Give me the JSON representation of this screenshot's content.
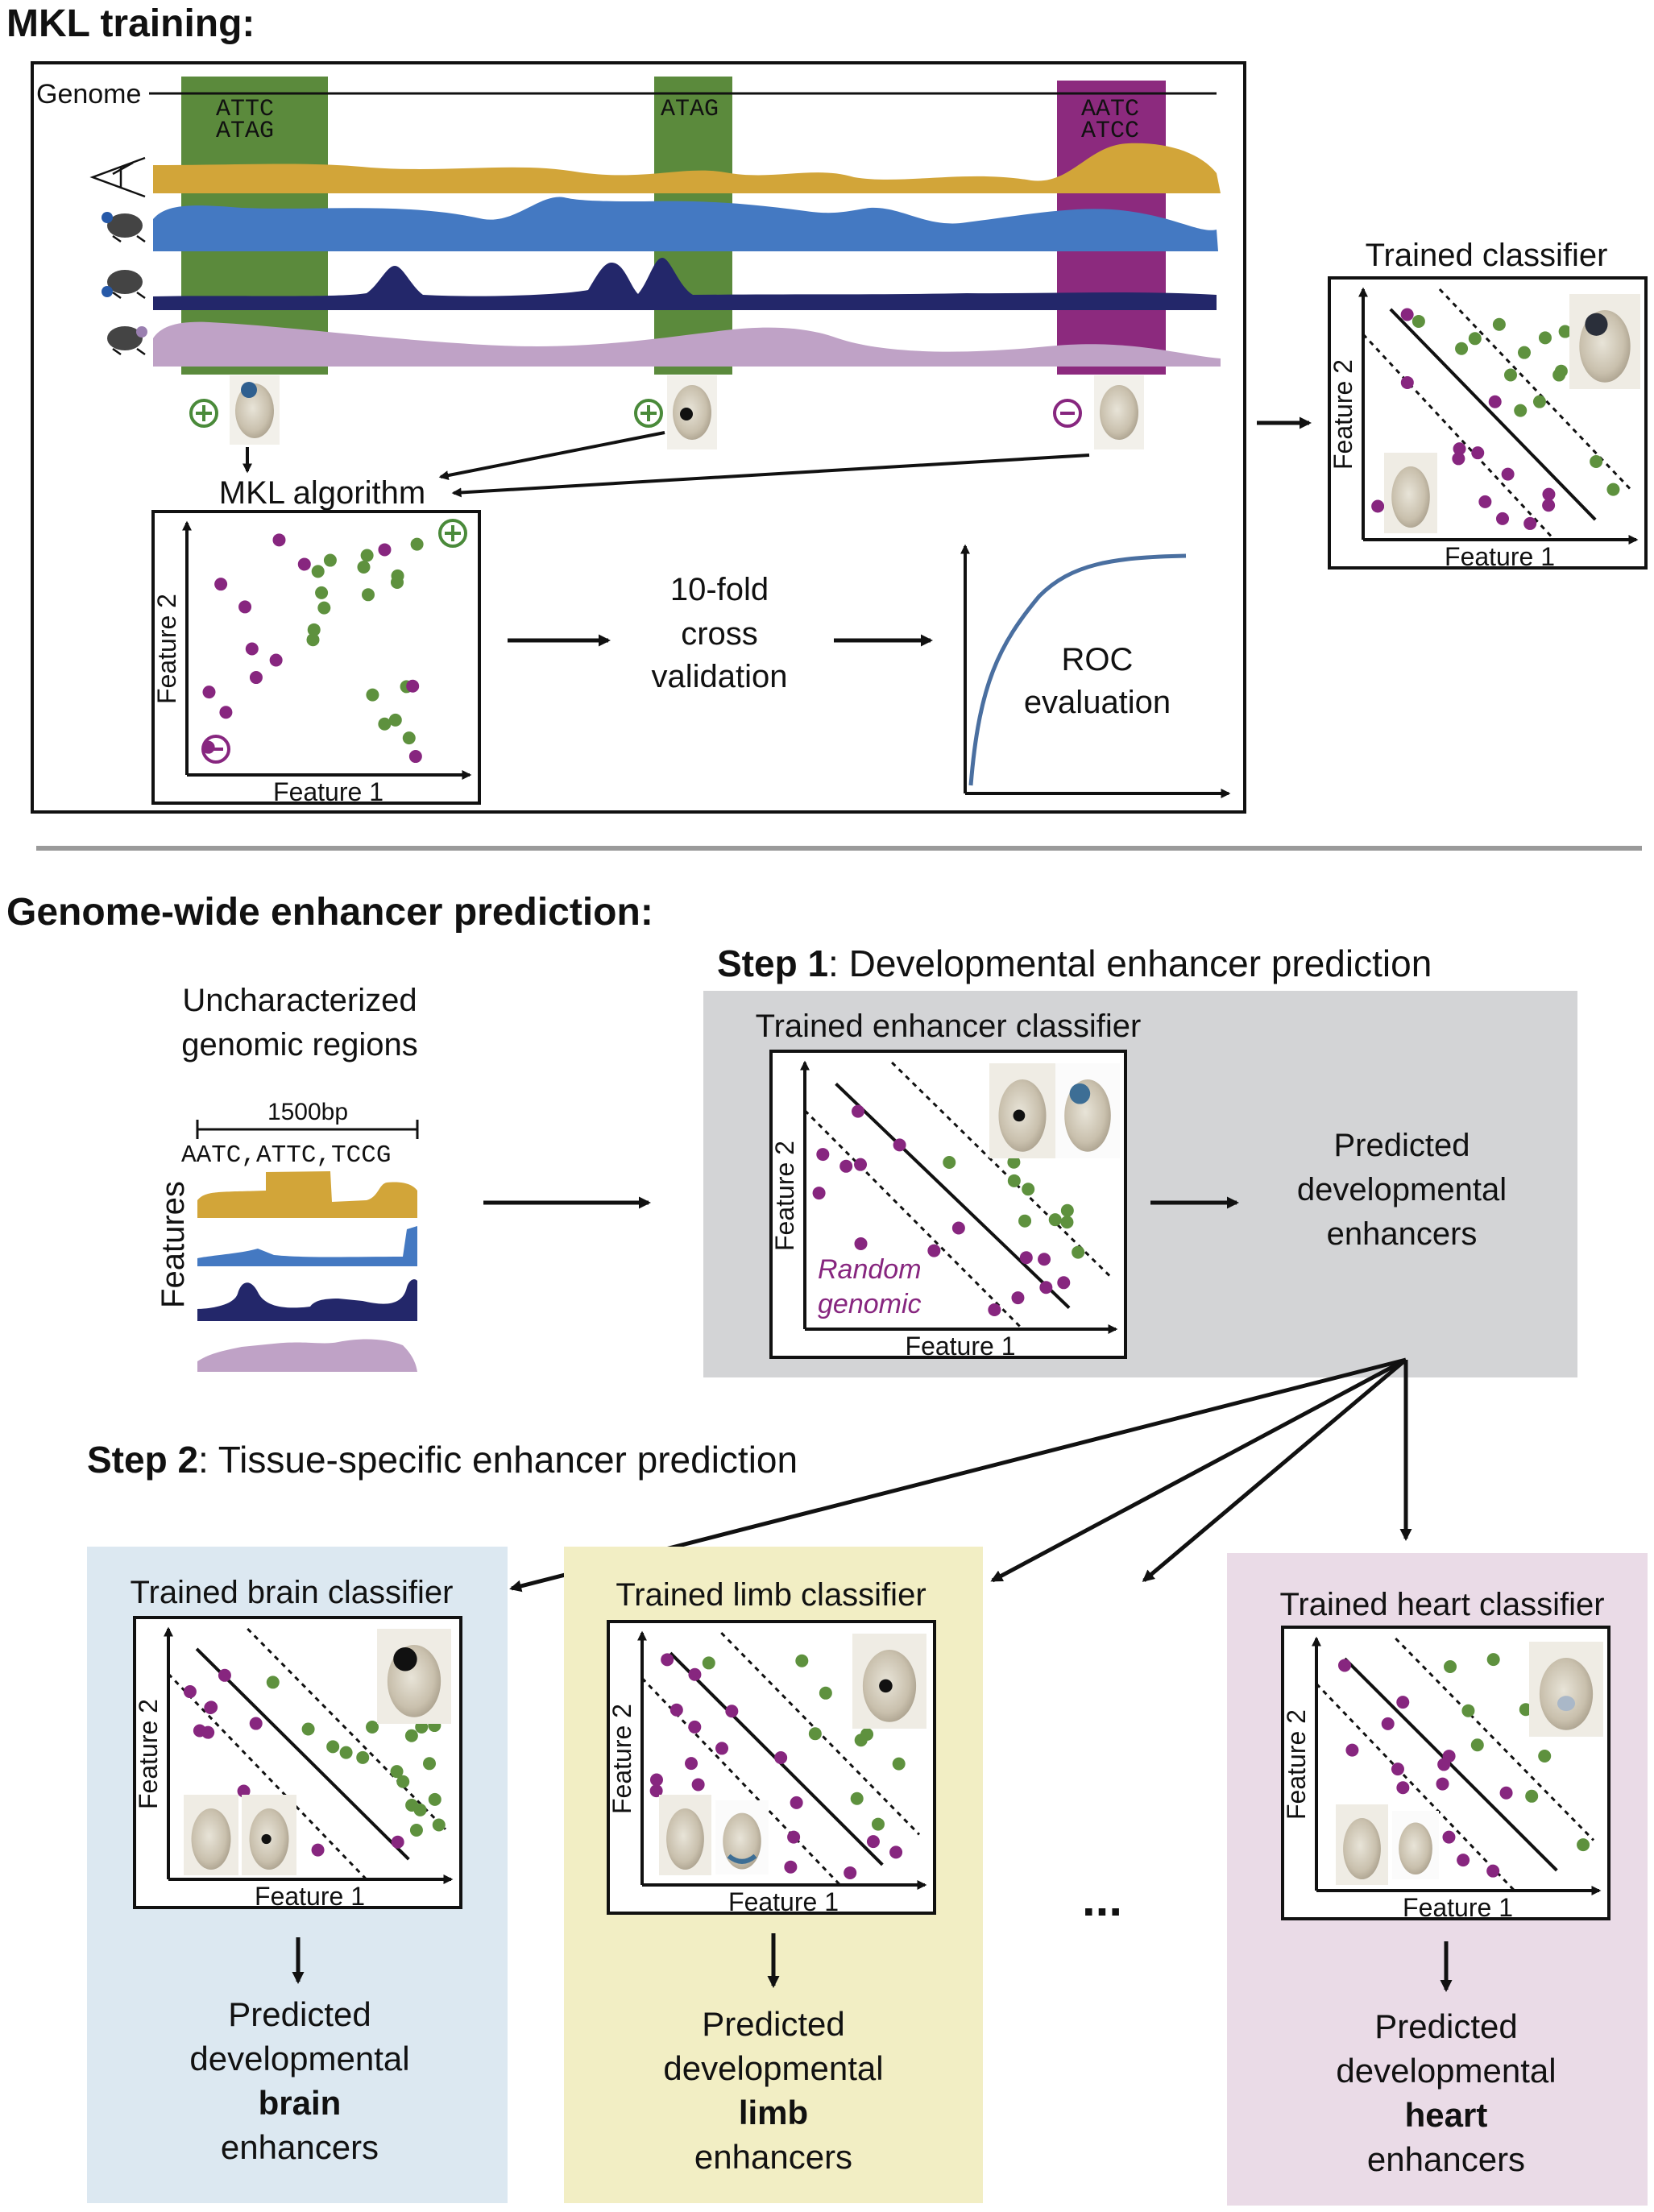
{
  "section1": {
    "title": "MKL training:",
    "genome_label": "Genome",
    "kmers": [
      "ATTC",
      "ATAG",
      "ATAG",
      "AATC",
      "ATCC"
    ],
    "signs": [
      "+",
      "+",
      "−"
    ],
    "mkl_label": "MKL algorithm",
    "cv_label": [
      "10-fold",
      "cross",
      "validation"
    ],
    "roc_label": [
      "ROC",
      "evaluation"
    ],
    "trained_label": "Trained classifier"
  },
  "axes": {
    "x": "Feature 1",
    "y": "Feature 2"
  },
  "section2": {
    "title": "Genome-wide enhancer prediction:",
    "uncharacterized": [
      "Uncharacterized",
      "genomic regions"
    ],
    "bp_label": "1500bp",
    "kmer_list": "AATC,ATTC,TCCG",
    "features_label": "Features",
    "step1_bold": "Step 1",
    "step1_rest": ": Developmental enhancer prediction",
    "step1_classifier": "Trained enhancer classifier",
    "random_genomic": [
      "Random",
      "genomic"
    ],
    "step1_output": [
      "Predicted",
      "developmental",
      "enhancers"
    ],
    "step2_bold": "Step 2",
    "step2_rest": ": Tissue-specific enhancer prediction",
    "ellipsis": "...",
    "panels": [
      {
        "title": "Trained brain classifier",
        "pre": [
          "Predicted",
          "developmental"
        ],
        "tissue": "brain",
        "post": "enhancers",
        "bg": "#dce8f1"
      },
      {
        "title": "Trained limb classifier",
        "pre": [
          "Predicted",
          "developmental"
        ],
        "tissue": "limb",
        "post": "enhancers",
        "bg": "#f2eec4"
      },
      {
        "title": "Trained heart classifier",
        "pre": [
          "Predicted",
          "developmental"
        ],
        "tissue": "heart",
        "post": "enhancers",
        "bg": "#eadbe7"
      }
    ]
  },
  "colors": {
    "green_band": "#5b8a3c",
    "purple_band": "#8c2a7e",
    "gold": "#d2a539",
    "blue": "#4479c2",
    "navy": "#23276a",
    "lilac": "#bfa2c6",
    "green_dot": "#5e913e",
    "purple_dot": "#87267f",
    "roc": "#4a6fa0",
    "gray_box": "#d3d4d6"
  }
}
